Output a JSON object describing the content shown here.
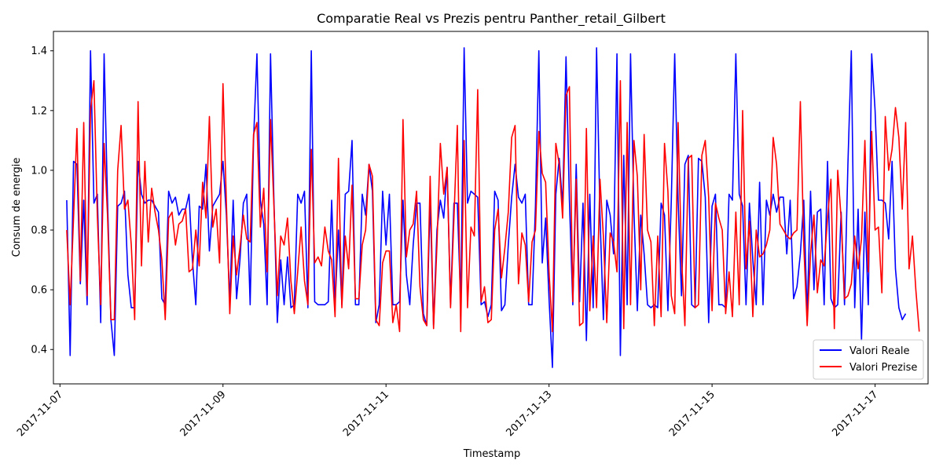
{
  "chart_data": {
    "type": "line",
    "title": "Comparatie Real vs Prezis pentru Panther_retail_Gilbert",
    "xlabel": "Timestamp",
    "ylabel": "Consum de energie",
    "x_tick_labels": [
      "2017-11-07",
      "2017-11-09",
      "2017-11-11",
      "2017-11-13",
      "2017-11-15",
      "2017-11-17"
    ],
    "y_tick_labels": [
      "0.4",
      "0.6",
      "0.8",
      "1.0",
      "1.2",
      "1.4"
    ],
    "y_ticks": [
      0.4,
      0.6,
      0.8,
      1.0,
      1.2,
      1.4
    ],
    "ylim": [
      0.285,
      1.465
    ],
    "x_start": "2017-11-07 00:00",
    "xlim_days": [
      -0.08,
      10.65
    ],
    "sample_interval_hours": 1,
    "first_sample_offset_hours": 2,
    "legend_position": "lower right",
    "grid": false,
    "series": [
      {
        "name": "Valori Reale",
        "color": "#0000ff",
        "values": [
          0.9,
          0.38,
          1.03,
          1.02,
          0.62,
          0.9,
          0.55,
          1.4,
          0.89,
          0.92,
          0.49,
          1.39,
          0.9,
          0.5,
          0.38,
          0.88,
          0.89,
          0.93,
          0.65,
          0.54,
          0.54,
          1.03,
          0.92,
          0.89,
          0.9,
          0.9,
          0.88,
          0.86,
          0.57,
          0.55,
          0.93,
          0.89,
          0.91,
          0.85,
          0.87,
          0.87,
          0.92,
          0.7,
          0.55,
          0.88,
          0.87,
          1.02,
          0.73,
          0.88,
          0.9,
          0.92,
          1.03,
          0.85,
          0.56,
          0.9,
          0.57,
          0.7,
          0.89,
          0.92,
          0.55,
          1.1,
          1.39,
          0.9,
          0.82,
          0.55,
          1.39,
          0.9,
          0.49,
          0.7,
          0.55,
          0.71,
          0.54,
          0.55,
          0.92,
          0.89,
          0.93,
          0.54,
          1.4,
          0.56,
          0.55,
          0.55,
          0.55,
          0.56,
          0.9,
          0.55,
          0.8,
          0.55,
          0.92,
          0.93,
          1.1,
          0.55,
          0.55,
          0.92,
          0.85,
          1.02,
          0.93,
          0.49,
          0.55,
          0.93,
          0.75,
          0.92,
          0.55,
          0.55,
          0.56,
          0.9,
          0.65,
          0.55,
          0.75,
          0.89,
          0.89,
          0.52,
          0.48,
          0.9,
          0.48,
          0.8,
          0.9,
          0.84,
          1.01,
          0.55,
          0.89,
          0.89,
          0.55,
          1.41,
          0.89,
          0.93,
          0.92,
          0.91,
          0.55,
          0.56,
          0.51,
          0.55,
          0.93,
          0.9,
          0.53,
          0.55,
          0.75,
          0.91,
          1.02,
          0.91,
          0.89,
          0.92,
          0.55,
          0.55,
          0.88,
          1.4,
          0.69,
          0.84,
          0.57,
          0.34,
          0.92,
          1.04,
          0.88,
          1.38,
          0.9,
          0.55,
          1.02,
          0.56,
          0.89,
          0.43,
          0.92,
          0.54,
          1.41,
          0.85,
          0.5,
          0.9,
          0.85,
          0.72,
          1.39,
          0.38,
          1.05,
          0.55,
          1.39,
          0.86,
          0.53,
          0.85,
          0.72,
          0.55,
          0.54,
          0.55,
          0.54,
          0.89,
          0.85,
          0.53,
          0.9,
          1.39,
          0.9,
          0.58,
          1.02,
          1.05,
          0.55,
          0.54,
          1.04,
          1.03,
          0.91,
          0.49,
          0.88,
          0.92,
          0.55,
          0.55,
          0.54,
          0.92,
          0.9,
          1.39,
          0.92,
          0.88,
          0.55,
          0.89,
          0.7,
          0.55,
          0.96,
          0.55,
          0.9,
          0.85,
          0.92,
          0.86,
          0.91,
          0.91,
          0.72,
          0.9,
          0.57,
          0.61,
          0.72,
          0.9,
          0.51,
          0.93,
          0.6,
          0.86,
          0.87,
          0.55,
          1.03,
          0.57,
          0.54,
          0.55,
          0.86,
          0.55,
          1.02,
          1.4,
          0.54,
          0.87,
          0.43,
          0.86,
          0.55,
          1.39,
          1.2,
          0.9,
          0.9,
          0.89,
          0.77,
          1.03,
          0.67,
          0.54,
          0.5,
          0.52
        ]
      },
      {
        "name": "Valori Prezise",
        "color": "#ff0000",
        "values": [
          0.8,
          0.55,
          0.84,
          1.14,
          0.63,
          1.16,
          0.58,
          1.2,
          1.3,
          0.85,
          0.55,
          1.09,
          0.85,
          0.5,
          0.5,
          1.0,
          1.15,
          0.87,
          0.9,
          0.75,
          0.5,
          1.23,
          0.68,
          1.03,
          0.76,
          0.94,
          0.86,
          0.8,
          0.7,
          0.5,
          0.84,
          0.86,
          0.75,
          0.82,
          0.83,
          0.87,
          0.66,
          0.67,
          0.8,
          0.68,
          0.96,
          0.84,
          1.18,
          0.81,
          0.87,
          0.69,
          1.29,
          0.89,
          0.52,
          0.78,
          0.65,
          0.74,
          0.85,
          0.77,
          0.76,
          1.12,
          1.16,
          0.81,
          0.94,
          0.66,
          1.17,
          0.88,
          0.58,
          0.78,
          0.75,
          0.84,
          0.63,
          0.52,
          0.66,
          0.81,
          0.63,
          0.55,
          1.07,
          0.69,
          0.71,
          0.68,
          0.81,
          0.73,
          0.7,
          0.51,
          1.04,
          0.54,
          0.78,
          0.67,
          0.95,
          0.57,
          0.57,
          0.75,
          0.8,
          1.02,
          0.98,
          0.5,
          0.48,
          0.69,
          0.73,
          0.73,
          0.49,
          0.55,
          0.46,
          1.17,
          0.71,
          0.8,
          0.82,
          0.93,
          0.61,
          0.5,
          0.48,
          0.98,
          0.47,
          0.75,
          1.09,
          0.92,
          1.01,
          0.54,
          0.84,
          1.15,
          0.46,
          1.1,
          0.54,
          0.81,
          0.78,
          1.27,
          0.56,
          0.61,
          0.49,
          0.5,
          0.8,
          0.87,
          0.64,
          0.74,
          0.86,
          1.11,
          1.15,
          0.62,
          0.79,
          0.75,
          0.56,
          0.76,
          0.8,
          1.13,
          0.99,
          0.96,
          0.66,
          0.46,
          1.09,
          1.02,
          0.84,
          1.25,
          1.28,
          0.56,
          0.97,
          0.48,
          0.49,
          1.14,
          0.53,
          0.78,
          0.54,
          0.97,
          0.78,
          0.49,
          0.79,
          0.76,
          0.66,
          1.3,
          0.47,
          1.16,
          0.55,
          1.1,
          0.98,
          0.6,
          1.12,
          0.8,
          0.76,
          0.48,
          0.78,
          0.51,
          1.09,
          0.93,
          0.58,
          0.52,
          1.16,
          0.71,
          0.48,
          1.04,
          1.05,
          0.54,
          0.55,
          1.05,
          1.1,
          0.91,
          0.53,
          0.89,
          0.84,
          0.8,
          0.52,
          0.66,
          0.51,
          0.86,
          0.55,
          1.2,
          0.67,
          0.83,
          0.51,
          0.8,
          0.71,
          0.72,
          0.75,
          0.8,
          1.11,
          1.02,
          0.82,
          0.8,
          0.78,
          0.77,
          0.79,
          0.8,
          1.23,
          0.75,
          0.48,
          0.72,
          0.85,
          0.59,
          0.7,
          0.68,
          0.84,
          0.97,
          0.47,
          1.0,
          0.84,
          0.57,
          0.58,
          0.62,
          0.78,
          0.67,
          0.77,
          1.1,
          0.66,
          1.13,
          0.8,
          0.81,
          0.59,
          1.18,
          1.0,
          1.07,
          1.21,
          1.11,
          0.87,
          1.16,
          0.67,
          0.78,
          0.6,
          0.46
        ]
      }
    ]
  }
}
